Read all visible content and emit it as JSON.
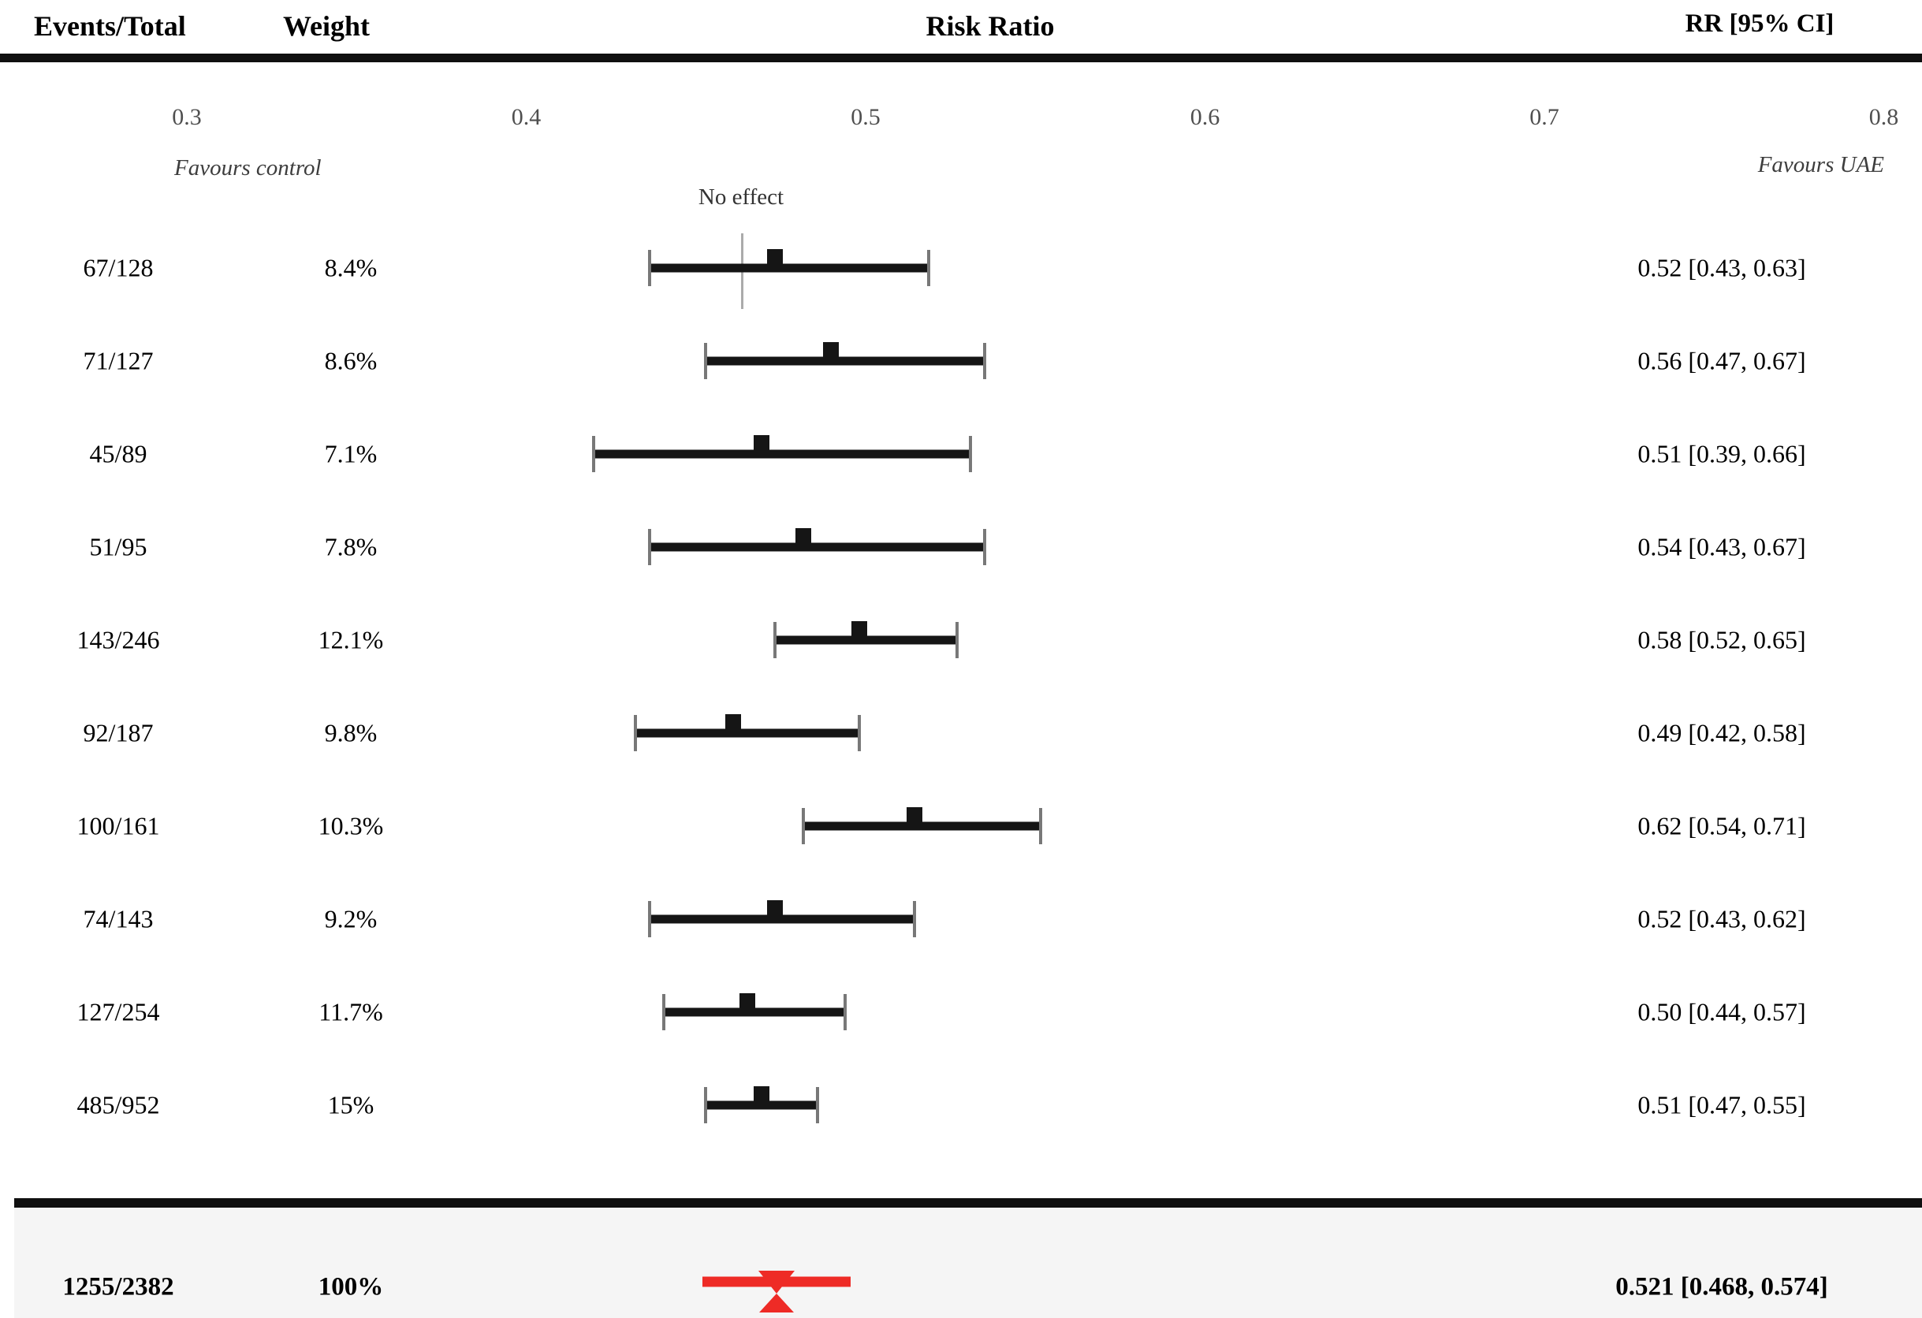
{
  "header": {
    "events_total": "Events/Total",
    "weight": "Weight",
    "risk_ratio": "Risk Ratio",
    "rr_ci": "RR [95% CI]"
  },
  "axis": {
    "tick_labels": [
      "0.3",
      "0.4",
      "0.5",
      "0.6",
      "0.7",
      "0.8"
    ],
    "tick_values": [
      0.3,
      0.4,
      0.5,
      0.6,
      0.7,
      0.8
    ],
    "favours_left": "Favours control",
    "favours_right": "Favours UAE",
    "no_effect_label": "No effect"
  },
  "studies": [
    {
      "events_total": "67/128",
      "weight": "8.4%",
      "rr": 0.52,
      "ci_low": 0.43,
      "ci_high": 0.63,
      "rr_label": "0.52 [0.43, 0.63]"
    },
    {
      "events_total": "71/127",
      "weight": "8.6%",
      "rr": 0.56,
      "ci_low": 0.47,
      "ci_high": 0.67,
      "rr_label": "0.56 [0.47, 0.67]"
    },
    {
      "events_total": "45/89",
      "weight": "7.1%",
      "rr": 0.51,
      "ci_low": 0.39,
      "ci_high": 0.66,
      "rr_label": "0.51 [0.39, 0.66]"
    },
    {
      "events_total": "51/95",
      "weight": "7.8%",
      "rr": 0.54,
      "ci_low": 0.43,
      "ci_high": 0.67,
      "rr_label": "0.54 [0.43, 0.67]"
    },
    {
      "events_total": "143/246",
      "weight": "12.1%",
      "rr": 0.58,
      "ci_low": 0.52,
      "ci_high": 0.65,
      "rr_label": "0.58 [0.52, 0.65]"
    },
    {
      "events_total": "92/187",
      "weight": "9.8%",
      "rr": 0.49,
      "ci_low": 0.42,
      "ci_high": 0.58,
      "rr_label": "0.49 [0.42, 0.58]"
    },
    {
      "events_total": "100/161",
      "weight": "10.3%",
      "rr": 0.62,
      "ci_low": 0.54,
      "ci_high": 0.71,
      "rr_label": "0.62 [0.54, 0.71]"
    },
    {
      "events_total": "74/143",
      "weight": "9.2%",
      "rr": 0.52,
      "ci_low": 0.43,
      "ci_high": 0.62,
      "rr_label": "0.52 [0.43, 0.62]"
    },
    {
      "events_total": "127/254",
      "weight": "11.7%",
      "rr": 0.5,
      "ci_low": 0.44,
      "ci_high": 0.57,
      "rr_label": "0.50 [0.44, 0.57]"
    },
    {
      "events_total": "485/952",
      "weight": "15%",
      "rr": 0.51,
      "ci_low": 0.47,
      "ci_high": 0.55,
      "rr_label": "0.51 [0.47, 0.55]"
    }
  ],
  "summary": {
    "events_total": "1255/2382",
    "weight": "100%",
    "rr": 0.521,
    "ci_low": 0.468,
    "ci_high": 0.574,
    "rr_label": "0.521 [0.468, 0.574]"
  },
  "colors": {
    "summary_marker": "#ee2b26",
    "bar": "#151515",
    "cap": "#787878",
    "no_effect_line": "#ababab",
    "band_bg": "#f5f5f5",
    "rule": "#101010",
    "tick_text": "#4f4f4f",
    "favours_text": "#3d3d3d"
  },
  "chart_data": {
    "type": "scatter",
    "subtype": "forest_plot",
    "title": "Risk Ratio",
    "xlabel": "Risk Ratio",
    "ylabel": "",
    "xlim": [
      0.3,
      0.8
    ],
    "x_ticks": [
      0.3,
      0.4,
      0.5,
      0.6,
      0.7,
      0.8
    ],
    "grid": false,
    "legend_position": "none",
    "annotations": [
      "Favours control",
      "No effect",
      "Favours UAE"
    ],
    "series": [
      {
        "name": "studies",
        "categories": [
          "67/128",
          "71/127",
          "45/89",
          "51/95",
          "143/246",
          "92/187",
          "100/161",
          "74/143",
          "127/254",
          "485/952"
        ],
        "weights_pct": [
          8.4,
          8.6,
          7.1,
          7.8,
          12.1,
          9.8,
          10.3,
          9.2,
          11.7,
          15
        ],
        "rr": [
          0.52,
          0.56,
          0.51,
          0.54,
          0.58,
          0.49,
          0.62,
          0.52,
          0.5,
          0.51
        ],
        "ci_low": [
          0.43,
          0.47,
          0.39,
          0.43,
          0.52,
          0.42,
          0.54,
          0.43,
          0.44,
          0.47
        ],
        "ci_high": [
          0.63,
          0.67,
          0.66,
          0.67,
          0.65,
          0.58,
          0.71,
          0.62,
          0.57,
          0.55
        ]
      },
      {
        "name": "pooled",
        "categories": [
          "1255/2382"
        ],
        "weights_pct": [
          100
        ],
        "rr": [
          0.521
        ],
        "ci_low": [
          0.468
        ],
        "ci_high": [
          0.574
        ]
      }
    ]
  }
}
